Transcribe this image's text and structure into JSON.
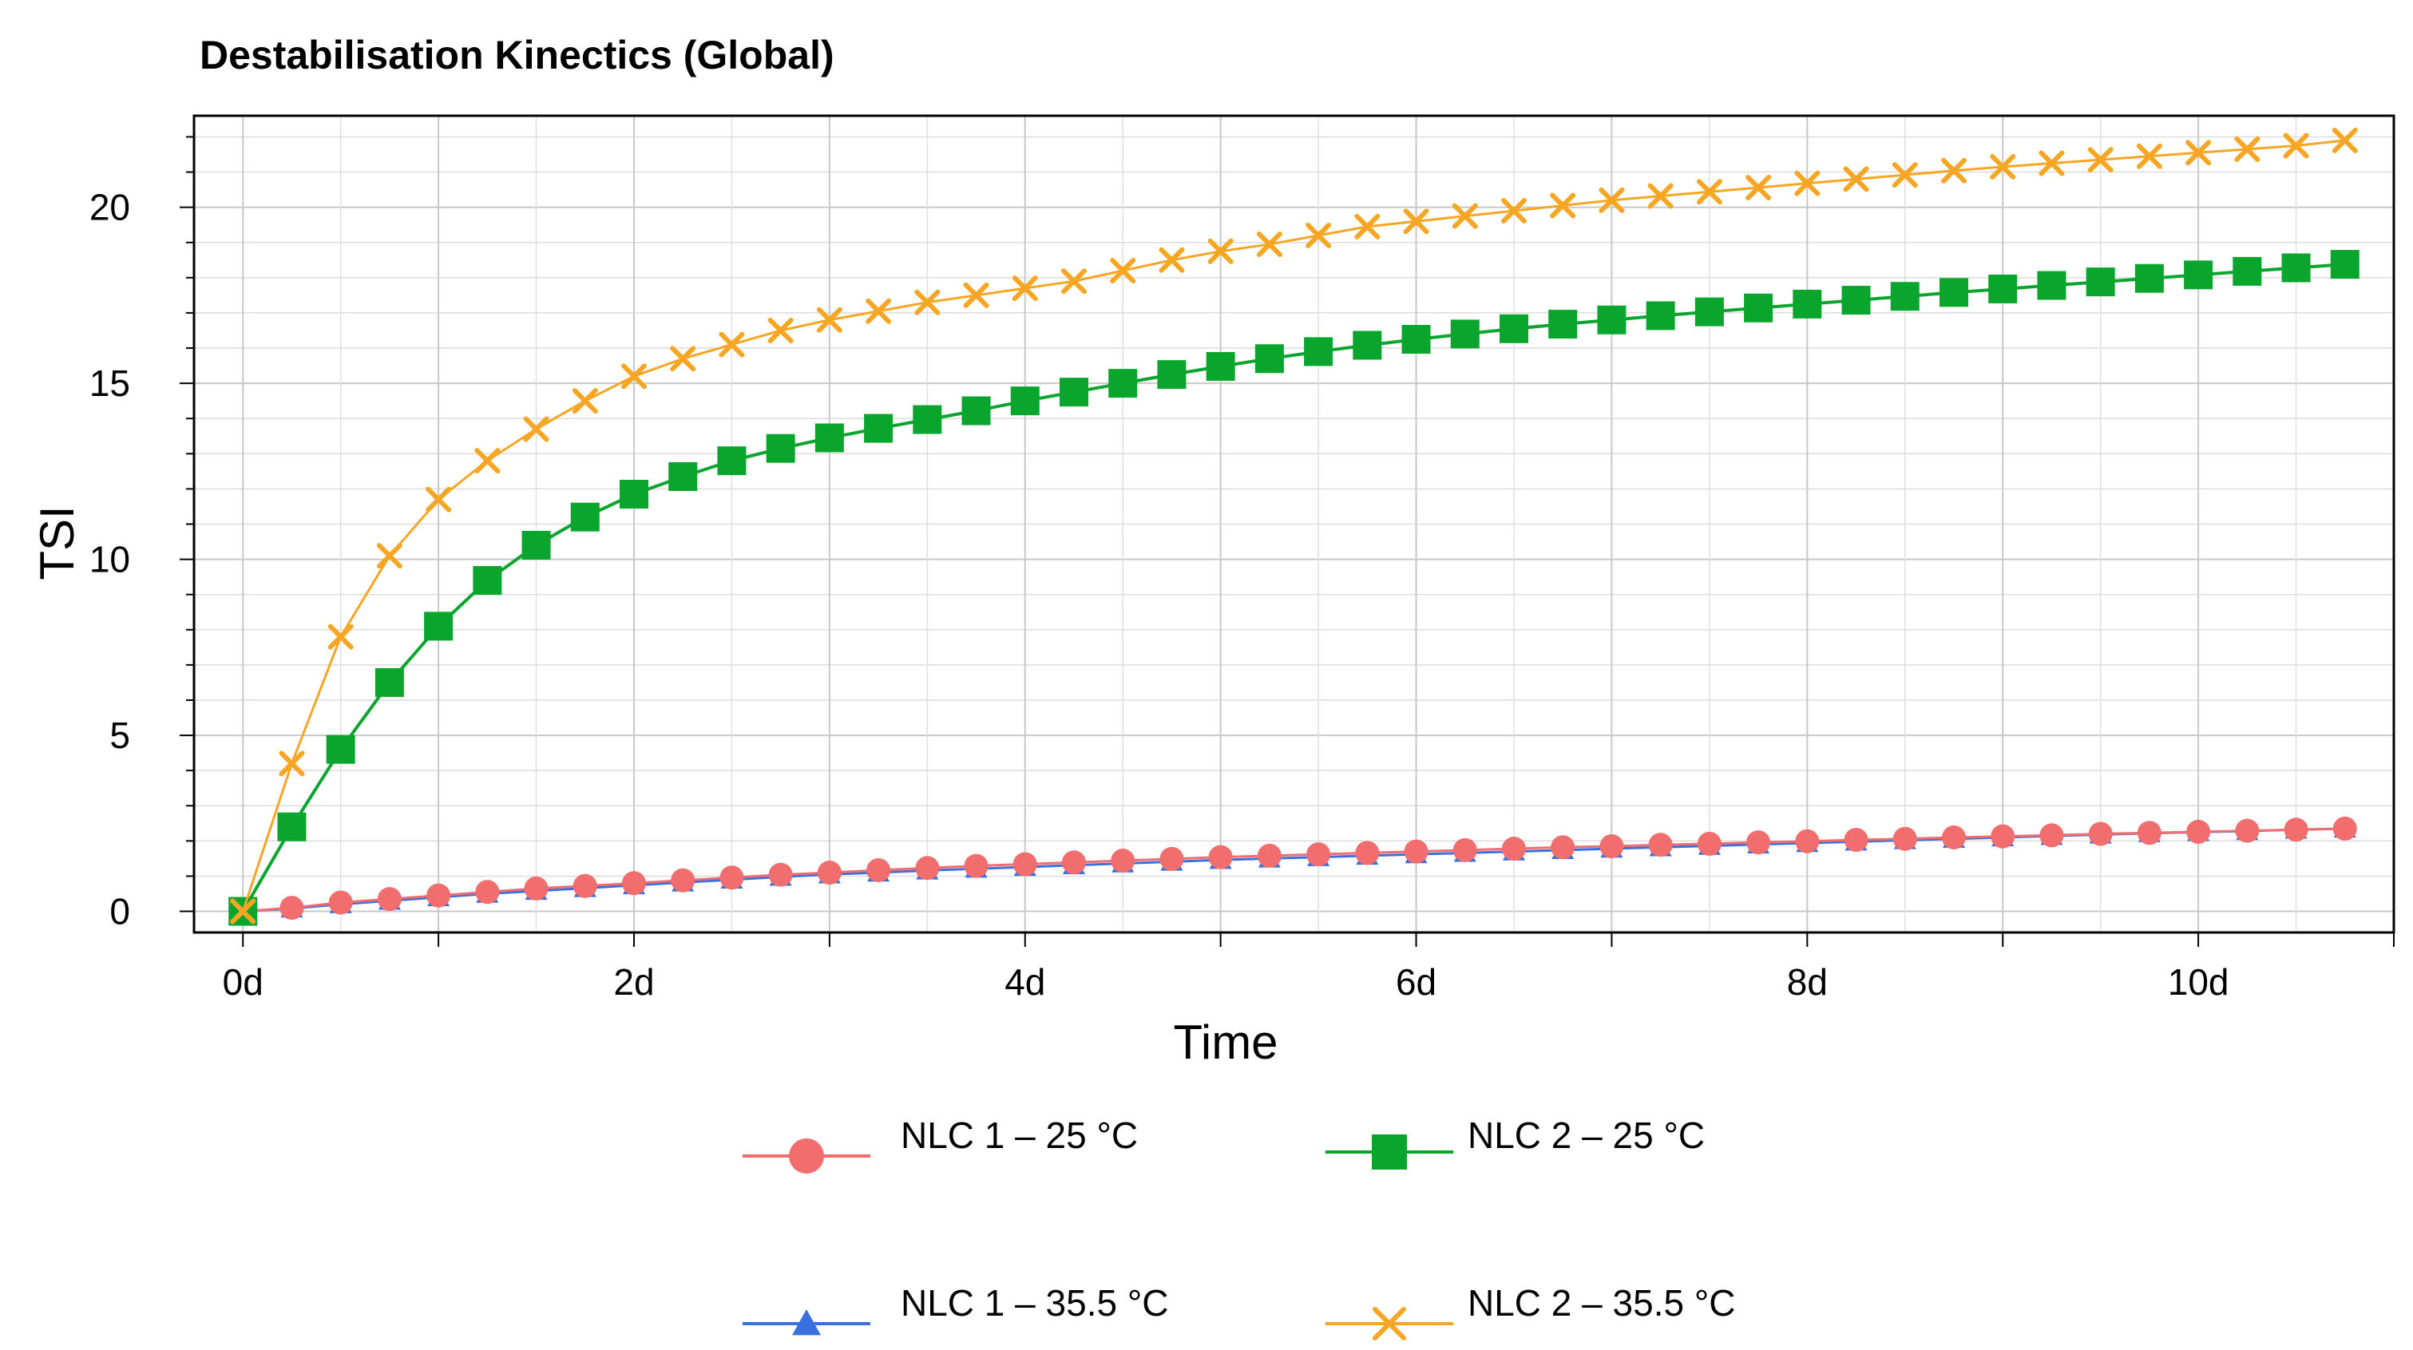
{
  "chart_data": {
    "type": "line",
    "title": "Destabilisation Kinectics (Global)",
    "xlabel": "Time",
    "ylabel": "TSI",
    "xlim": [
      -0.25,
      11.0
    ],
    "ylim": [
      -0.6,
      22.6
    ],
    "x_ticks": [
      {
        "value": 0,
        "label": "0d"
      },
      {
        "value": 2,
        "label": "2d"
      },
      {
        "value": 4,
        "label": "4d"
      },
      {
        "value": 6,
        "label": "6d"
      },
      {
        "value": 8,
        "label": "8d"
      },
      {
        "value": 10,
        "label": "10d"
      }
    ],
    "y_ticks": [
      {
        "value": 0,
        "label": "0"
      },
      {
        "value": 5,
        "label": "5"
      },
      {
        "value": 10,
        "label": "10"
      },
      {
        "value": 15,
        "label": "15"
      },
      {
        "value": 20,
        "label": "20"
      }
    ],
    "grid": true,
    "legend_position": "bottom",
    "x": [
      0,
      0.25,
      0.5,
      0.75,
      1.0,
      1.25,
      1.5,
      1.75,
      2.0,
      2.25,
      2.5,
      2.75,
      3.0,
      3.25,
      3.5,
      3.75,
      4.0,
      4.25,
      4.5,
      4.75,
      5.0,
      5.25,
      5.5,
      5.75,
      6.0,
      6.25,
      6.5,
      6.75,
      7.0,
      7.25,
      7.5,
      7.75,
      8.0,
      8.25,
      8.5,
      8.75,
      9.0,
      9.25,
      9.5,
      9.75,
      10.0,
      10.25,
      10.5,
      10.75
    ],
    "series": [
      {
        "name": "NLC 1 – 25 °C",
        "color": "#f26d6d",
        "marker": "circle",
        "values": [
          0,
          0.1,
          0.25,
          0.35,
          0.45,
          0.55,
          0.65,
          0.72,
          0.8,
          0.88,
          0.96,
          1.04,
          1.1,
          1.17,
          1.23,
          1.29,
          1.34,
          1.39,
          1.44,
          1.49,
          1.54,
          1.58,
          1.62,
          1.66,
          1.7,
          1.74,
          1.78,
          1.82,
          1.85,
          1.89,
          1.92,
          1.96,
          1.99,
          2.03,
          2.06,
          2.1,
          2.13,
          2.16,
          2.2,
          2.23,
          2.26,
          2.29,
          2.32,
          2.35
        ]
      },
      {
        "name": "NLC 2 – 25 °C",
        "color": "#0aa52d",
        "marker": "square",
        "values": [
          0,
          2.4,
          4.6,
          6.5,
          8.1,
          9.4,
          10.4,
          11.2,
          11.85,
          12.35,
          12.8,
          13.15,
          13.45,
          13.72,
          13.97,
          14.22,
          14.5,
          14.75,
          15.0,
          15.25,
          15.48,
          15.7,
          15.9,
          16.08,
          16.25,
          16.4,
          16.55,
          16.68,
          16.8,
          16.92,
          17.03,
          17.14,
          17.25,
          17.36,
          17.47,
          17.58,
          17.68,
          17.78,
          17.88,
          17.98,
          18.08,
          18.18,
          18.28,
          18.38
        ]
      },
      {
        "name": "NLC 1 – 35.5 °C",
        "color": "#3a6fe0",
        "marker": "triangle",
        "values": [
          0,
          0.08,
          0.2,
          0.3,
          0.4,
          0.5,
          0.58,
          0.66,
          0.74,
          0.82,
          0.9,
          0.98,
          1.05,
          1.1,
          1.16,
          1.21,
          1.26,
          1.31,
          1.36,
          1.41,
          1.46,
          1.5,
          1.54,
          1.58,
          1.62,
          1.66,
          1.7,
          1.74,
          1.78,
          1.82,
          1.86,
          1.9,
          1.94,
          1.98,
          2.02,
          2.06,
          2.1,
          2.14,
          2.18,
          2.22,
          2.25,
          2.28,
          2.32,
          2.35
        ]
      },
      {
        "name": "NLC 2 – 35.5 °C",
        "color": "#f7a623",
        "marker": "x",
        "values": [
          0,
          4.2,
          7.8,
          10.1,
          11.7,
          12.8,
          13.7,
          14.5,
          15.2,
          15.7,
          16.1,
          16.5,
          16.8,
          17.05,
          17.3,
          17.5,
          17.7,
          17.9,
          18.2,
          18.5,
          18.75,
          18.95,
          19.2,
          19.45,
          19.6,
          19.75,
          19.9,
          20.05,
          20.2,
          20.32,
          20.44,
          20.56,
          20.68,
          20.8,
          20.92,
          21.04,
          21.15,
          21.25,
          21.35,
          21.45,
          21.55,
          21.65,
          21.75,
          21.9
        ]
      }
    ]
  }
}
